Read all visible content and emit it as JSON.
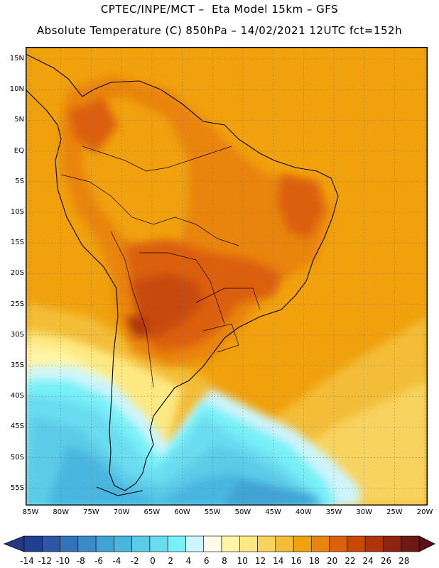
{
  "header": {
    "line1": "CPTEC/INPE/MCT –  Eta Model 15km – GFS",
    "line2": "Absolute Temperature (C) 850hPa – 14/02/2021 12UTC fct=152h"
  },
  "map": {
    "region": "South America",
    "variable": "Absolute Temperature 850hPa",
    "lat_ticks": [
      "15N",
      "10N",
      "5N",
      "EQ",
      "5S",
      "10S",
      "15S",
      "20S",
      "25S",
      "30S",
      "35S",
      "40S",
      "45S",
      "50S",
      "55S"
    ],
    "lon_ticks": [
      "85W",
      "80W",
      "75W",
      "70W",
      "65W",
      "60W",
      "55W",
      "50W",
      "45W",
      "40W",
      "35W",
      "30W",
      "25W",
      "20W"
    ]
  },
  "colorbar": {
    "labels": [
      "-14",
      "-12",
      "-10",
      "-8",
      "-6",
      "-4",
      "-2",
      "0",
      "2",
      "4",
      "6",
      "8",
      "10",
      "12",
      "14",
      "16",
      "18",
      "20",
      "22",
      "24",
      "26",
      "28"
    ],
    "colors": [
      "#1f3f8f",
      "#2b57a6",
      "#3472b9",
      "#3a8cc9",
      "#3fa3d4",
      "#49b6e0",
      "#5ccbe8",
      "#6adcf0",
      "#77f0f7",
      "#cdf5fb",
      "#fffbe6",
      "#fff5a6",
      "#fde982",
      "#f8d35f",
      "#f3bd38",
      "#f0a10c",
      "#e9840f",
      "#dc5f0b",
      "#c84808",
      "#ae350a",
      "#8d2310",
      "#6d1a14"
    ],
    "under_color": "#243a86",
    "over_color": "#5e0f1a"
  }
}
